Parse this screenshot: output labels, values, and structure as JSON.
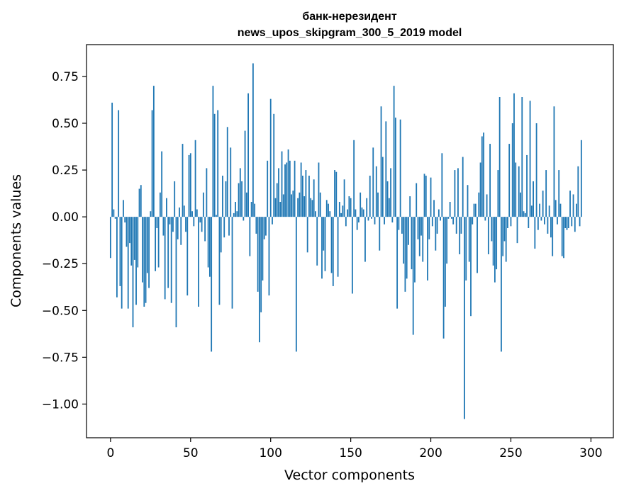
{
  "chart_data": {
    "type": "bar",
    "title": "банк-нерезидент",
    "subtitle": "news_upos_skipgram_300_5_2019 model",
    "xlabel": "Vector components",
    "ylabel": "Components values",
    "xlim": [
      -15,
      314
    ],
    "ylim": [
      -1.18,
      0.92
    ],
    "xticks": [
      0,
      50,
      100,
      150,
      200,
      250,
      300
    ],
    "xtick_labels": [
      "0",
      "50",
      "100",
      "150",
      "200",
      "250",
      "300"
    ],
    "yticks": [
      0.75,
      0.5,
      0.25,
      0.0,
      -0.25,
      -0.5,
      -0.75,
      -1.0
    ],
    "ytick_labels": [
      "0.75",
      "0.50",
      "0.25",
      "0.00",
      "−0.25",
      "−0.50",
      "−0.75",
      "−1.00"
    ],
    "grid": false,
    "bar_color": "#1f77b4",
    "values": [
      -0.22,
      0.61,
      0.04,
      -0.01,
      -0.43,
      0.57,
      -0.37,
      -0.49,
      0.09,
      -0.03,
      -0.16,
      -0.49,
      -0.14,
      -0.26,
      -0.59,
      -0.23,
      -0.47,
      -0.27,
      0.15,
      0.17,
      -0.35,
      -0.48,
      -0.46,
      -0.3,
      -0.38,
      0.03,
      0.57,
      0.7,
      -0.29,
      -0.06,
      -0.27,
      0.13,
      0.35,
      -0.1,
      -0.44,
      0.1,
      -0.38,
      -0.04,
      -0.46,
      -0.08,
      0.19,
      -0.59,
      -0.12,
      0.05,
      -0.15,
      0.39,
      0.06,
      -0.08,
      -0.42,
      0.33,
      0.34,
      0.03,
      -0.05,
      0.41,
      0.04,
      -0.48,
      -0.03,
      -0.08,
      0.13,
      -0.13,
      0.26,
      -0.27,
      -0.32,
      -0.72,
      0.7,
      0.55,
      0.01,
      0.57,
      -0.47,
      -0.19,
      0.22,
      -0.11,
      0.19,
      0.48,
      -0.1,
      0.37,
      -0.49,
      0.02,
      0.08,
      0.03,
      0.18,
      0.26,
      0.19,
      -0.02,
      0.46,
      0.13,
      0.66,
      -0.21,
      0.08,
      0.82,
      0.07,
      -0.09,
      -0.4,
      -0.67,
      -0.51,
      -0.34,
      -0.12,
      -0.1,
      0.3,
      -0.42,
      0.63,
      -0.04,
      0.55,
      0.1,
      0.18,
      0.26,
      0.08,
      0.35,
      0.12,
      0.28,
      0.29,
      0.36,
      0.3,
      0.12,
      0.14,
      0.3,
      -0.72,
      0.1,
      0.13,
      0.29,
      0.22,
      0.11,
      0.25,
      -0.19,
      0.22,
      0.1,
      0.09,
      0.2,
      0.03,
      -0.26,
      0.29,
      0.13,
      -0.33,
      -0.18,
      -0.29,
      0.09,
      0.07,
      0.03,
      -0.3,
      -0.37,
      0.25,
      0.24,
      -0.32,
      0.08,
      0.02,
      0.06,
      0.2,
      -0.05,
      0.04,
      0.11,
      0.1,
      -0.41,
      0.41,
      0.04,
      -0.07,
      -0.03,
      0.13,
      0.05,
      0.04,
      -0.24,
      0.1,
      -0.02,
      0.22,
      -0.01,
      0.37,
      -0.04,
      0.27,
      0.13,
      -0.18,
      0.59,
      0.32,
      -0.04,
      0.51,
      0.19,
      0.1,
      0.26,
      -0.03,
      0.7,
      0.53,
      -0.49,
      -0.07,
      0.52,
      -0.09,
      -0.25,
      -0.4,
      -0.33,
      -0.15,
      0.11,
      -0.28,
      -0.63,
      -0.35,
      0.18,
      -0.12,
      -0.21,
      -0.1,
      -0.24,
      0.23,
      0.22,
      -0.34,
      -0.12,
      0.21,
      -0.05,
      0.09,
      -0.18,
      -0.09,
      0.04,
      -0.02,
      0.34,
      -0.65,
      -0.48,
      -0.25,
      -0.01,
      0.08,
      -0.01,
      -0.04,
      0.25,
      -0.09,
      0.26,
      -0.2,
      -0.09,
      0.32,
      -1.08,
      -0.34,
      0.17,
      -0.24,
      -0.53,
      -0.04,
      0.07,
      0.07,
      -0.3,
      0.13,
      0.29,
      0.43,
      0.45,
      -0.02,
      0.12,
      -0.2,
      0.39,
      -0.13,
      -0.26,
      -0.35,
      -0.28,
      0.25,
      0.64,
      -0.72,
      -0.21,
      -0.13,
      -0.24,
      -0.06,
      0.39,
      -0.05,
      0.5,
      0.66,
      0.29,
      -0.14,
      0.27,
      0.13,
      0.64,
      0.03,
      0.02,
      0.33,
      -0.06,
      0.62,
      0.06,
      0.19,
      -0.17,
      0.5,
      -0.07,
      0.07,
      -0.02,
      0.14,
      -0.04,
      0.25,
      -0.09,
      0.06,
      -0.11,
      -0.21,
      0.59,
      0.09,
      -0.04,
      0.25,
      0.07,
      -0.21,
      -0.22,
      -0.06,
      -0.07,
      -0.06,
      0.14,
      -0.05,
      0.12,
      -0.08,
      0.07,
      0.27,
      -0.05,
      0.41
    ]
  }
}
